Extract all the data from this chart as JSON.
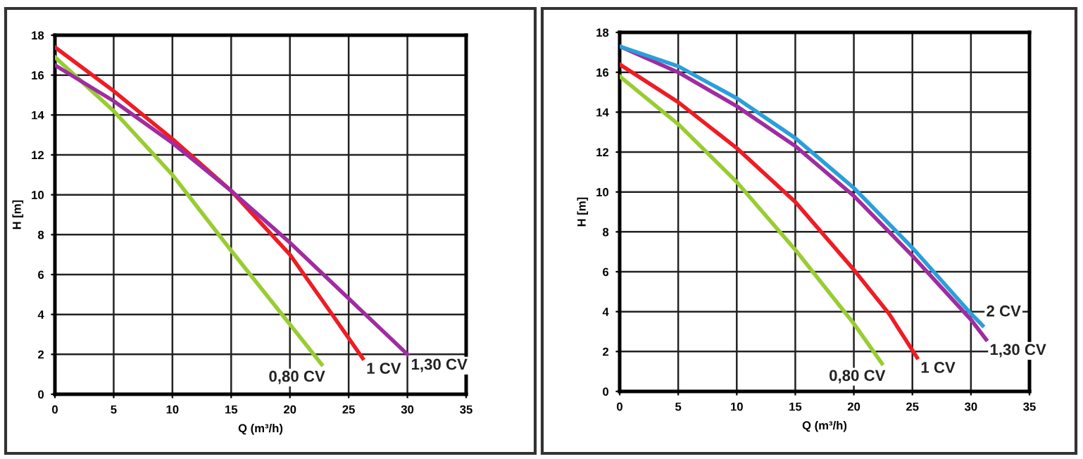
{
  "chart_data": [
    {
      "type": "line",
      "xlabel": "Q (m³/h)",
      "ylabel": "H [m]",
      "xlim": [
        0,
        35
      ],
      "ylim": [
        0,
        18
      ],
      "xticks": [
        0,
        5,
        10,
        15,
        20,
        25,
        30,
        35
      ],
      "yticks": [
        0,
        2,
        4,
        6,
        8,
        10,
        12,
        14,
        16,
        18
      ],
      "grid": true,
      "marker": "none",
      "line_style": "solid",
      "series": [
        {
          "name": "0,80 CV",
          "color": "#99cc33",
          "x": [
            0,
            5,
            10,
            15,
            20,
            22.7
          ],
          "values": [
            16.9,
            14.2,
            11.0,
            7.2,
            3.5,
            1.5
          ]
        },
        {
          "name": "1 CV",
          "color": "#ee1c25",
          "x": [
            0,
            5,
            10,
            15,
            20,
            23,
            26.2
          ],
          "values": [
            17.4,
            15.2,
            12.8,
            10.2,
            7.0,
            4.5,
            1.8
          ]
        },
        {
          "name": "1,30 CV",
          "color": "#a02ca0",
          "x": [
            0,
            5,
            10,
            15,
            20,
            25,
            30
          ],
          "values": [
            16.5,
            14.7,
            12.6,
            10.2,
            7.6,
            4.8,
            2.0
          ]
        }
      ]
    },
    {
      "type": "line",
      "xlabel": "Q (m³/h)",
      "ylabel": "H [m]",
      "xlim": [
        0,
        35
      ],
      "ylim": [
        0,
        18
      ],
      "xticks": [
        0,
        5,
        10,
        15,
        20,
        25,
        30,
        35
      ],
      "yticks": [
        0,
        2,
        4,
        6,
        8,
        10,
        12,
        14,
        16,
        18
      ],
      "grid": true,
      "marker": "none",
      "line_style": "solid",
      "series": [
        {
          "name": "0,80 CV",
          "color": "#99cc33",
          "x": [
            0,
            5,
            10,
            15,
            20,
            22.4
          ],
          "values": [
            15.8,
            13.4,
            10.5,
            7.1,
            3.4,
            1.4
          ]
        },
        {
          "name": "1 CV",
          "color": "#ee1c25",
          "x": [
            0,
            5,
            10,
            15,
            20,
            23,
            25.4
          ],
          "values": [
            16.4,
            14.5,
            12.2,
            9.5,
            6.1,
            3.9,
            1.7
          ]
        },
        {
          "name": "1,30 CV",
          "color": "#a02ca0",
          "x": [
            0,
            5,
            10,
            15,
            20,
            25,
            30,
            31.3
          ],
          "values": [
            17.3,
            16.0,
            14.3,
            12.3,
            9.8,
            6.8,
            3.6,
            2.6
          ]
        },
        {
          "name": "2 CV",
          "color": "#2a9fd8",
          "x": [
            0,
            5,
            10,
            15,
            20,
            25,
            30,
            31
          ],
          "values": [
            17.3,
            16.3,
            14.7,
            12.7,
            10.2,
            7.2,
            3.9,
            3.3
          ]
        }
      ]
    }
  ]
}
